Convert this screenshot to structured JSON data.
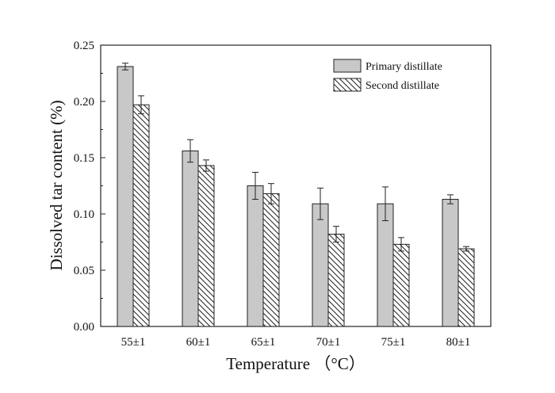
{
  "chart_data": {
    "type": "bar",
    "categories": [
      "55±1",
      "60±1",
      "65±1",
      "70±1",
      "75±1",
      "80±1"
    ],
    "series": [
      {
        "name": "Primary distillate",
        "values": [
          0.231,
          0.156,
          0.125,
          0.109,
          0.109,
          0.113
        ],
        "errors": [
          0.003,
          0.01,
          0.012,
          0.014,
          0.015,
          0.004
        ],
        "fill": "#c8c8c8"
      },
      {
        "name": "Second distillate",
        "values": [
          0.197,
          0.143,
          0.118,
          0.082,
          0.073,
          0.069
        ],
        "errors": [
          0.008,
          0.005,
          0.009,
          0.007,
          0.006,
          0.002
        ],
        "fill": "hatch"
      }
    ],
    "xlabel": "Temperature （°C）",
    "ylabel": "Dissolved tar content (%)",
    "ylim": [
      0,
      0.25
    ],
    "yticks": [
      "0.00",
      "0.05",
      "0.10",
      "0.15",
      "0.20",
      "0.25"
    ],
    "legend_position": "top-right",
    "grid": false
  }
}
